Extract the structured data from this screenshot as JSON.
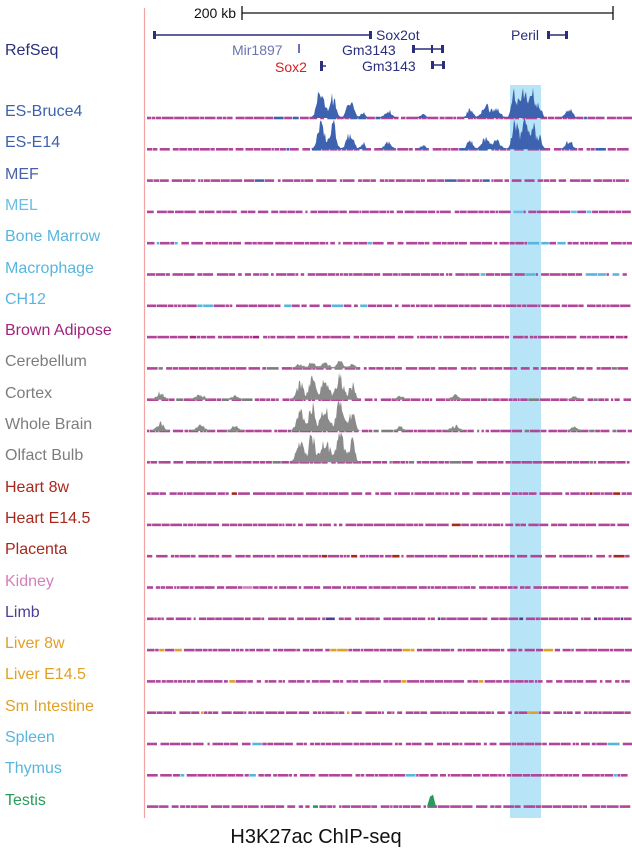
{
  "scale_bar": {
    "label": "200 kb"
  },
  "refseq": {
    "track_label": "RefSeq",
    "genes": [
      {
        "name": "Sox2ot",
        "color": "#2a2f7c"
      },
      {
        "name": "Peril",
        "color": "#2a2f7c"
      },
      {
        "name": "Mir1897",
        "color": "#6b74b0"
      },
      {
        "name": "Gm3143",
        "color": "#2a2f7c"
      },
      {
        "name": "Sox2",
        "color": "#d21f26"
      },
      {
        "name": "Gm3143",
        "color": "#2a2f7c"
      }
    ]
  },
  "tracks": [
    {
      "label": "ES-Bruce4",
      "color": "#3d62b0"
    },
    {
      "label": "ES-E14",
      "color": "#3d62b0"
    },
    {
      "label": "MEF",
      "color": "#4961aa"
    },
    {
      "label": "MEL",
      "color": "#6bbde3"
    },
    {
      "label": "Bone Marrow",
      "color": "#58b6dd"
    },
    {
      "label": "Macrophage",
      "color": "#58b6dd"
    },
    {
      "label": "CH12",
      "color": "#58b6dd"
    },
    {
      "label": "Brown Adipose",
      "color": "#a4237d"
    },
    {
      "label": "Cerebellum",
      "color": "#7d7d7d"
    },
    {
      "label": "Cortex",
      "color": "#7d7d7d"
    },
    {
      "label": "Whole Brain",
      "color": "#7d7d7d"
    },
    {
      "label": "Olfact Bulb",
      "color": "#7d7d7d"
    },
    {
      "label": "Heart 8w",
      "color": "#a8281d"
    },
    {
      "label": "Heart E14.5",
      "color": "#a8281d"
    },
    {
      "label": "Placenta",
      "color": "#a8281d"
    },
    {
      "label": "Kidney",
      "color": "#d57fb8"
    },
    {
      "label": "Limb",
      "color": "#4a3f96"
    },
    {
      "label": "Liver 8w",
      "color": "#e2a028"
    },
    {
      "label": "Liver E14.5",
      "color": "#e2a028"
    },
    {
      "label": "Sm Intestine",
      "color": "#e2a028"
    },
    {
      "label": "Spleen",
      "color": "#58b6dd"
    },
    {
      "label": "Thymus",
      "color": "#58b6dd"
    },
    {
      "label": "Testis",
      "color": "#2a9a5a"
    }
  ],
  "caption": "H3K27ac ChIP-seq",
  "colors": {
    "highlight": "#b7e4f7",
    "divider": "#f2a3a3",
    "baseline": "#b0459a",
    "es_signal": "#3d62b0",
    "brain_signal": "#8a8a8a"
  }
}
